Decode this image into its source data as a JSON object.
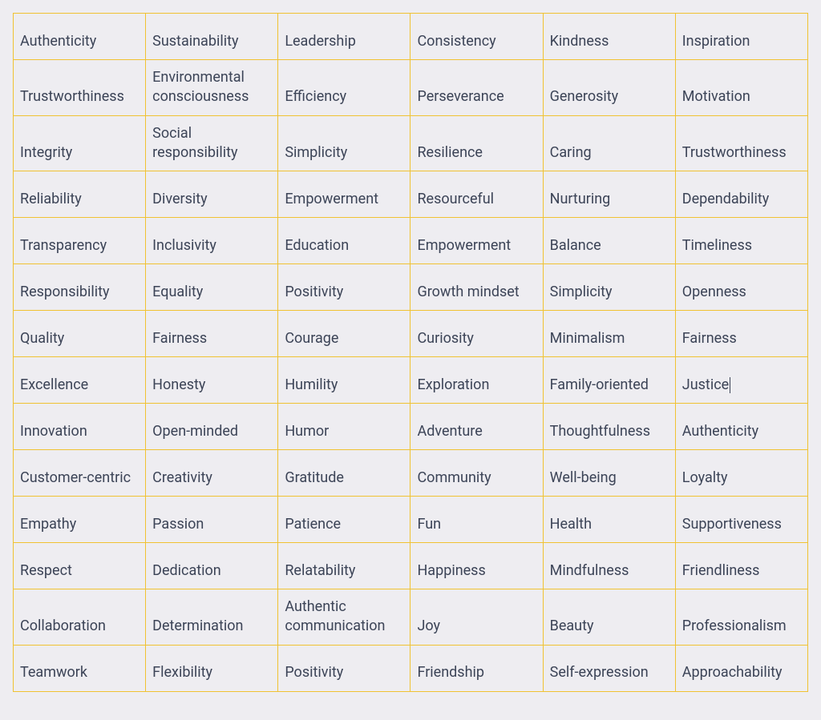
{
  "table": {
    "type": "table",
    "columns": 6,
    "border_color": "#f0c232",
    "background_color": "#eeedf1",
    "text_color": "#3c4457",
    "font_size": 18,
    "cell_vertical_align": "bottom",
    "cursor_cell": {
      "row": 7,
      "col": 5
    },
    "rows": [
      [
        "Authenticity",
        "Sustainability",
        "Leadership",
        "Consistency",
        "Kindness",
        "Inspiration"
      ],
      [
        "Trustworthiness",
        "Environmental consciousness",
        "Efficiency",
        "Perseverance",
        "Generosity",
        "Motivation"
      ],
      [
        "Integrity",
        "Social responsibility",
        "Simplicity",
        "Resilience",
        "Caring",
        "Trustworthiness"
      ],
      [
        "Reliability",
        "Diversity",
        "Empowerment",
        "Resourceful",
        "Nurturing",
        "Dependability"
      ],
      [
        "Transparency",
        "Inclusivity",
        "Education",
        "Empowerment",
        "Balance",
        "Timeliness"
      ],
      [
        "Responsibility",
        "Equality",
        "Positivity",
        "Growth mindset",
        "Simplicity",
        "Openness"
      ],
      [
        "Quality",
        "Fairness",
        "Courage",
        "Curiosity",
        "Minimalism",
        "Fairness"
      ],
      [
        "Excellence",
        "Honesty",
        "Humility",
        "Exploration",
        "Family-oriented",
        "Justice"
      ],
      [
        "Innovation",
        "Open-minded",
        "Humor",
        "Adventure",
        "Thoughtfulness",
        "Authenticity"
      ],
      [
        "Customer-centric",
        "Creativity",
        "Gratitude",
        "Community",
        "Well-being",
        "Loyalty"
      ],
      [
        "Empathy",
        "Passion",
        "Patience",
        "Fun",
        "Health",
        "Supportiveness"
      ],
      [
        "Respect",
        "Dedication",
        "Relatability",
        "Happiness",
        "Mindfulness",
        "Friendliness"
      ],
      [
        "Collaboration",
        "Determination",
        "Authentic communication",
        "Joy",
        "Beauty",
        "Professionalism"
      ],
      [
        "Teamwork",
        "Flexibility",
        "Positivity",
        "Friendship",
        "Self-expression",
        "Approachability"
      ]
    ]
  }
}
